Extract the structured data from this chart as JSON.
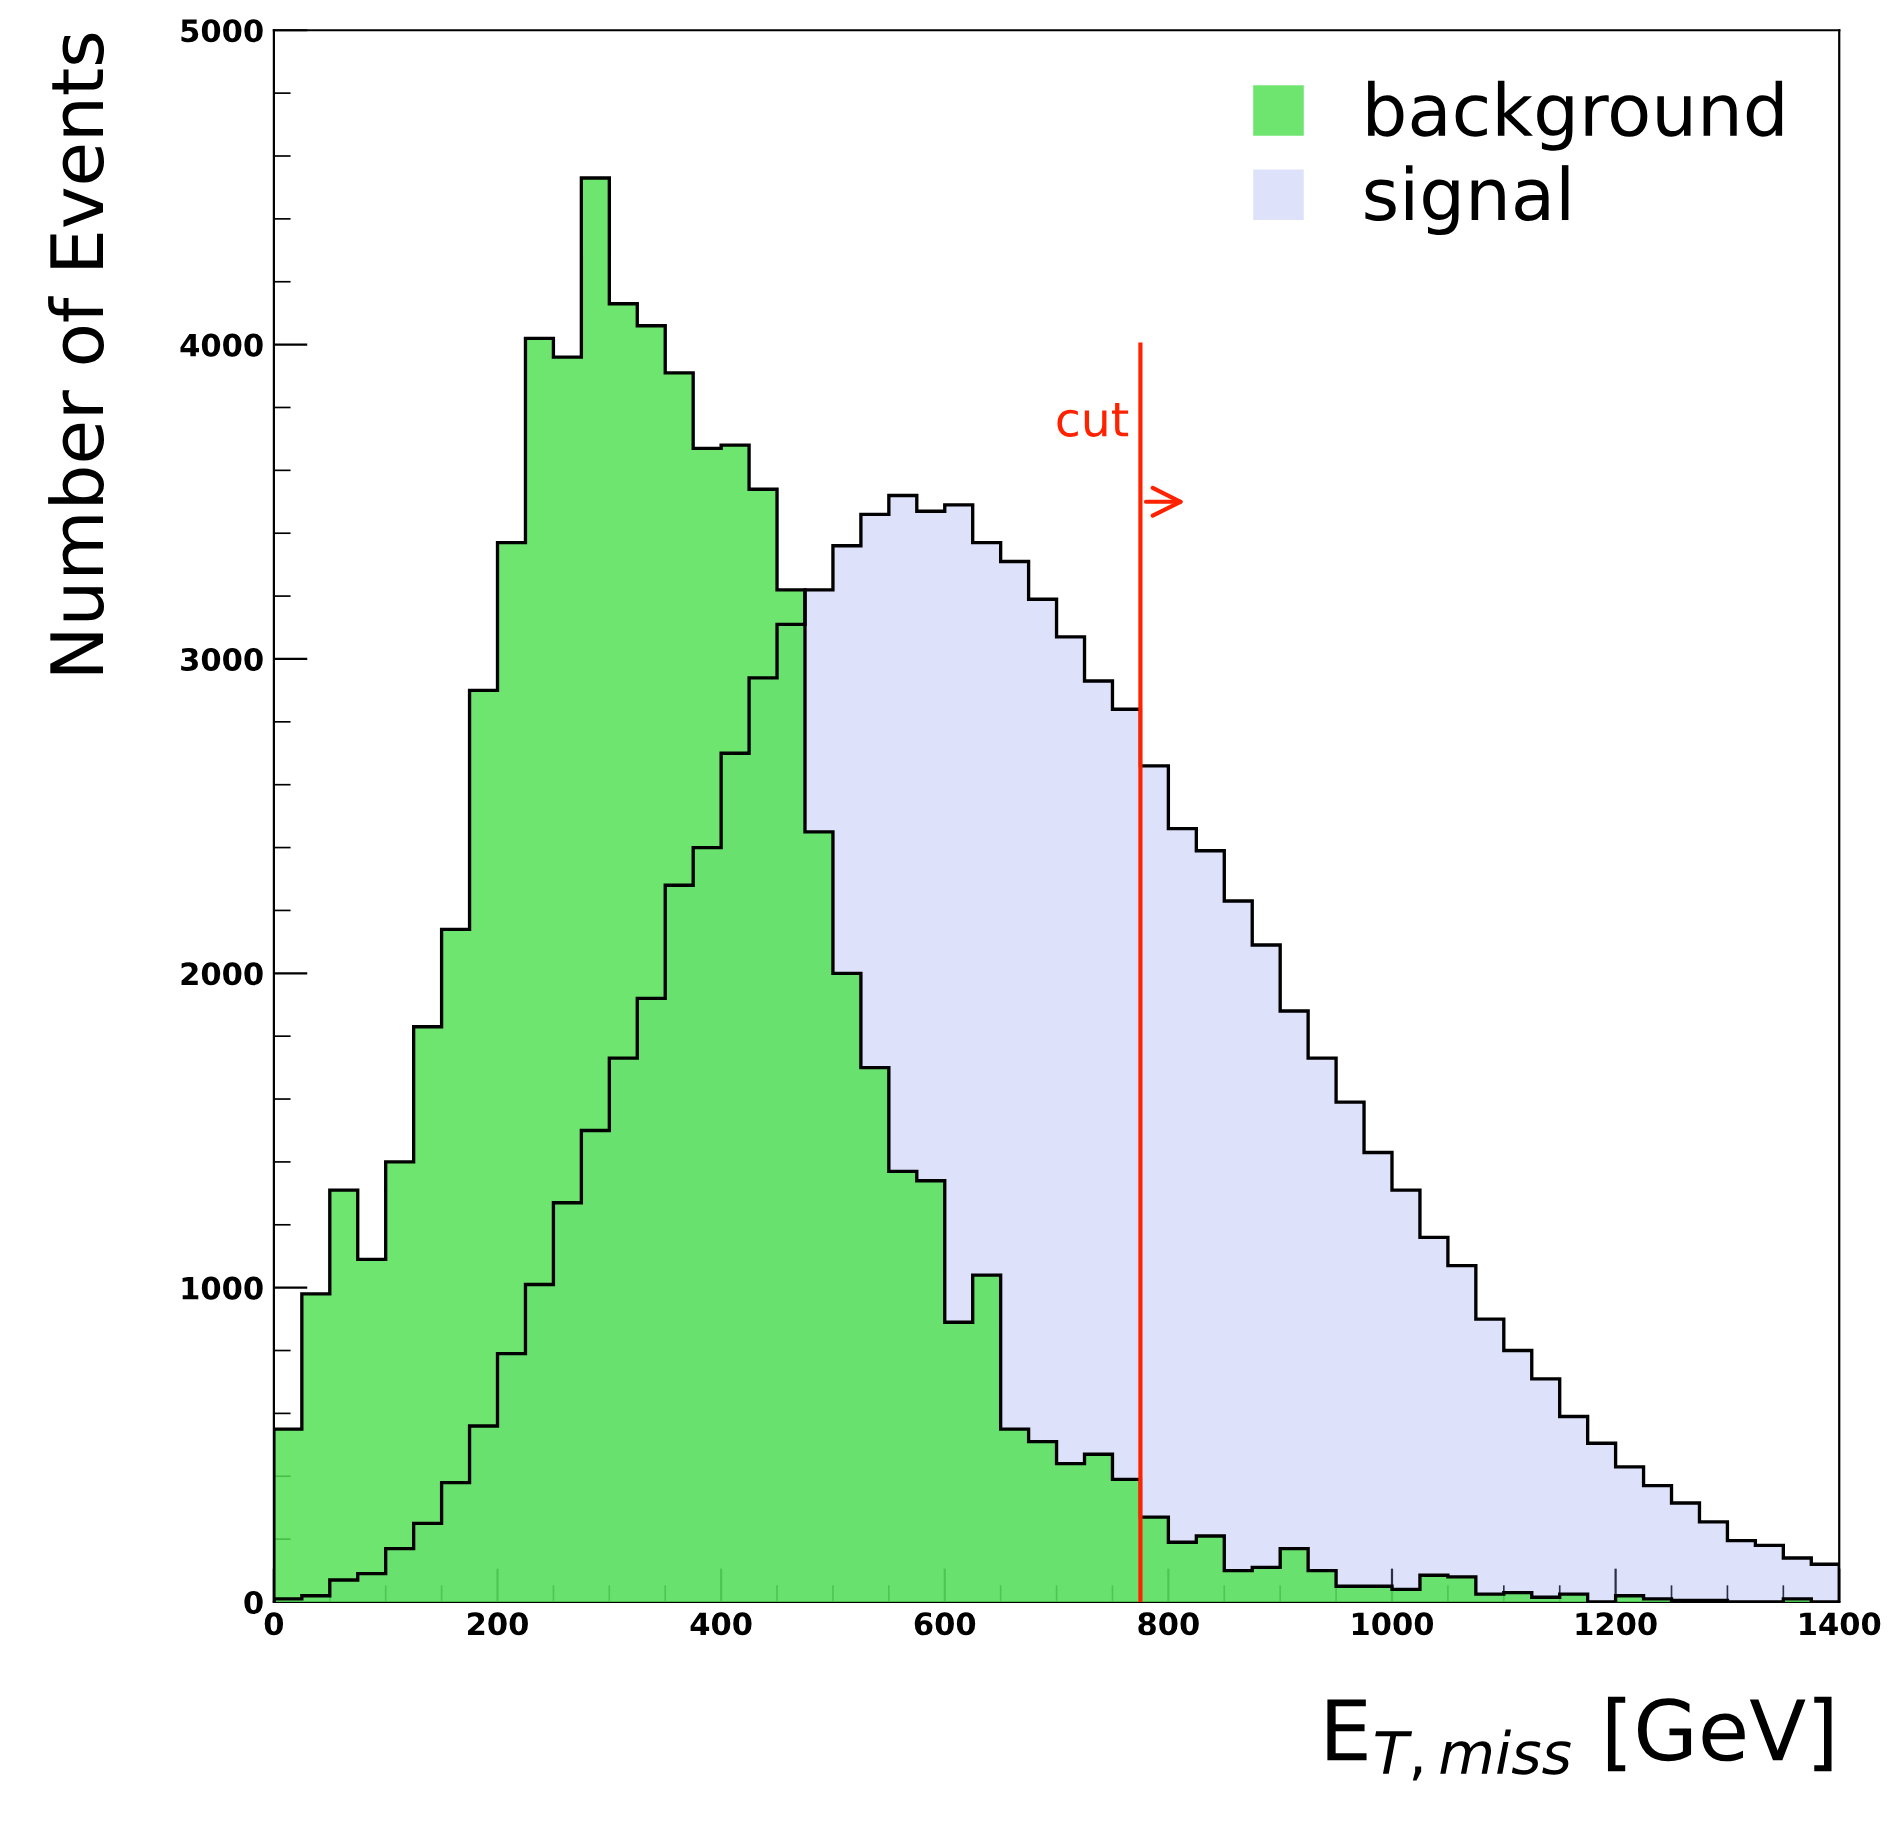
{
  "chart_data": {
    "type": "histogram",
    "xlabel": "E$_{T,miss}$ [GeV]",
    "ylabel": "Number of Events",
    "bins": [
      0,
      25,
      50,
      75,
      100,
      125,
      150,
      175,
      200,
      225,
      250,
      275,
      300,
      325,
      350,
      375,
      400,
      425,
      450,
      475,
      500,
      525,
      550,
      575,
      600,
      625,
      650,
      675,
      700,
      725,
      750,
      775,
      800,
      825,
      850,
      875,
      900,
      925,
      950,
      975,
      1000,
      1025,
      1050,
      1075,
      1100,
      1125,
      1150,
      1175,
      1200,
      1225,
      1250,
      1275,
      1300,
      1325,
      1350,
      1375,
      1400
    ],
    "series": [
      {
        "name": "background",
        "color": "#55e055",
        "values": [
          550,
          980,
          1310,
          1090,
          1400,
          1830,
          2140,
          2900,
          3370,
          4020,
          3960,
          4530,
          4130,
          4060,
          3910,
          3670,
          3680,
          3540,
          3220,
          2450,
          2000,
          1700,
          1370,
          1340,
          890,
          1040,
          550,
          510,
          440,
          470,
          390,
          270,
          190,
          210,
          100,
          110,
          170,
          100,
          50,
          50,
          40,
          85,
          80,
          25,
          30,
          15,
          25,
          0,
          20,
          10,
          5,
          5,
          0,
          0,
          10,
          0
        ]
      },
      {
        "name": "signal",
        "color": "#8fa0f0",
        "values": [
          10,
          20,
          70,
          90,
          170,
          250,
          380,
          560,
          790,
          1010,
          1270,
          1500,
          1730,
          1920,
          2280,
          2400,
          2700,
          2940,
          3110,
          3220,
          3360,
          3460,
          3520,
          3470,
          3490,
          3370,
          3310,
          3190,
          3070,
          2930,
          2840,
          2660,
          2460,
          2390,
          2230,
          2090,
          1880,
          1730,
          1590,
          1430,
          1310,
          1160,
          1070,
          900,
          800,
          710,
          590,
          505,
          430,
          370,
          315,
          255,
          195,
          180,
          140,
          120
        ]
      }
    ],
    "xlim": [
      0,
      1400
    ],
    "ylim": [
      0,
      5000
    ],
    "xticks": [
      0,
      200,
      400,
      600,
      800,
      1000,
      1200,
      1400
    ],
    "yticks": [
      0,
      1000,
      2000,
      3000,
      4000,
      5000
    ],
    "ref_lines": [
      {
        "axis": "x",
        "value": 775,
        "label": "cut",
        "color": "#ff2200"
      }
    ],
    "grid": false,
    "legend": "top right"
  }
}
